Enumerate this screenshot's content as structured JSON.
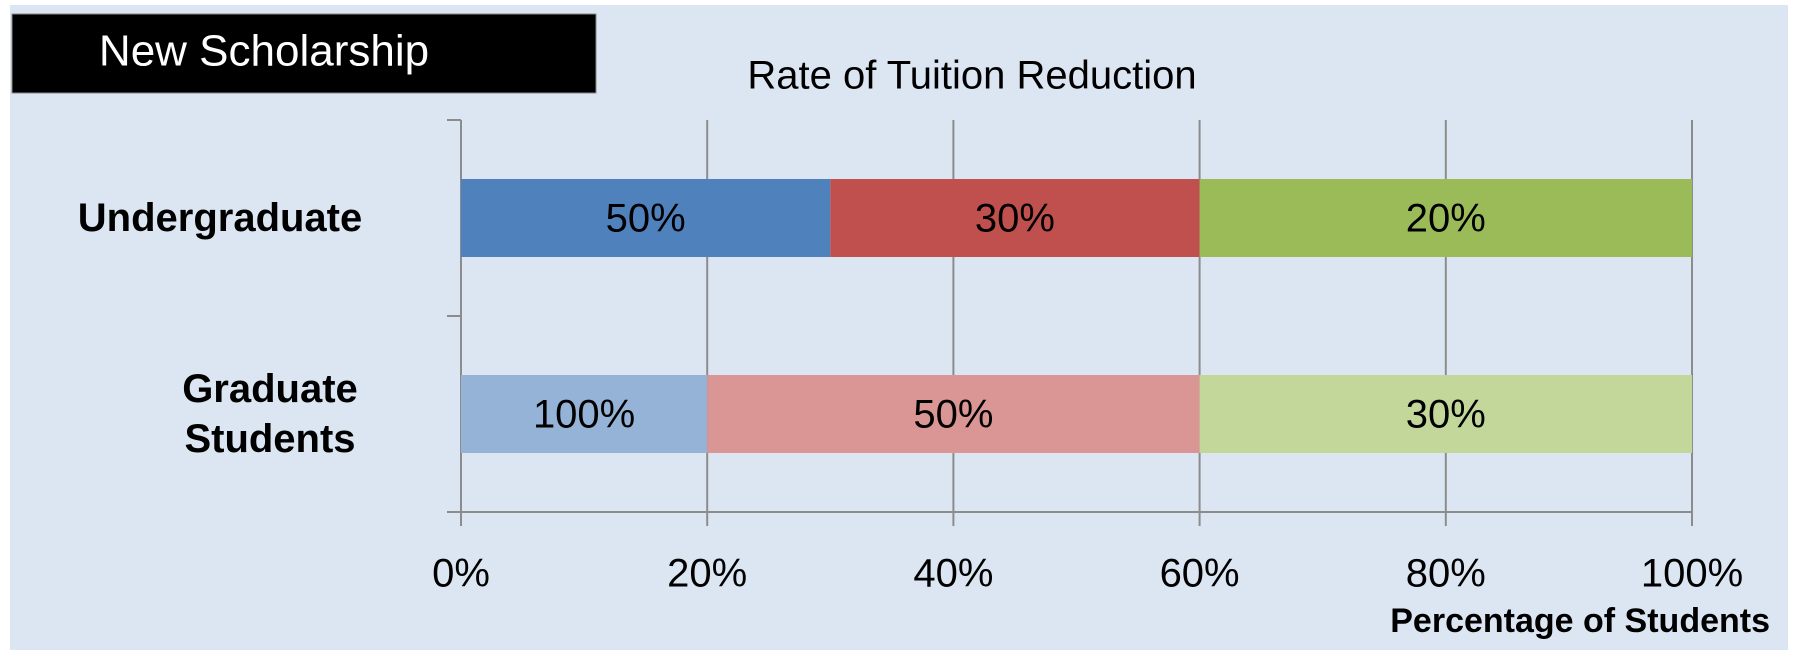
{
  "banner": "New Scholarship",
  "chart_data": {
    "type": "stacked_barh",
    "title": "Rate of Tuition Reduction",
    "x_label": "Percentage of Students",
    "categories": [
      "Undergraduate",
      "Graduate Students"
    ],
    "series": [
      {
        "color": [
          "#4f81bd",
          "#95b3d7"
        ],
        "values": [
          30,
          20
        ],
        "segment_labels": [
          "50%",
          "100%"
        ]
      },
      {
        "color": [
          "#c0504d",
          "#da9694"
        ],
        "values": [
          30,
          40
        ],
        "segment_labels": [
          "30%",
          "50%"
        ]
      },
      {
        "color": [
          "#9bbb59",
          "#c4d79b"
        ],
        "values": [
          40,
          40
        ],
        "segment_labels": [
          "20%",
          "30%"
        ]
      }
    ],
    "xlim": [
      0,
      100
    ],
    "xticks": [
      {
        "value": 0,
        "label": "0%"
      },
      {
        "value": 20,
        "label": "20%"
      },
      {
        "value": 40,
        "label": "40%"
      },
      {
        "value": 60,
        "label": "60%"
      },
      {
        "value": 80,
        "label": "80%"
      },
      {
        "value": 100,
        "label": "100%"
      }
    ],
    "grid": true
  }
}
